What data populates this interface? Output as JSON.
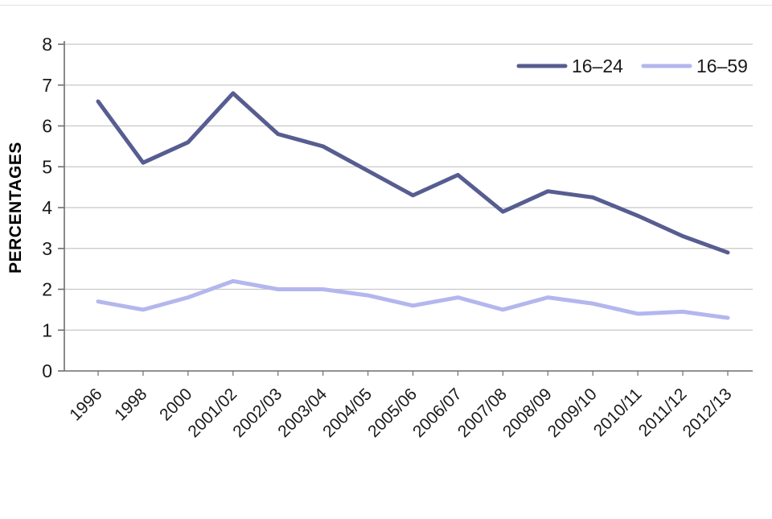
{
  "chart_data": {
    "type": "line",
    "title": "",
    "xlabel": "",
    "ylabel": "PERCENTAGES",
    "ylim": [
      0,
      8
    ],
    "yticks": [
      0,
      1,
      2,
      3,
      4,
      5,
      6,
      7,
      8
    ],
    "grid": true,
    "legend_position": "top-right",
    "categories": [
      "1996",
      "1998",
      "2000",
      "2001/02",
      "2002/03",
      "2003/04",
      "2004/05",
      "2005/06",
      "2006/07",
      "2007/08",
      "2008/09",
      "2009/10",
      "2010/11",
      "2011/12",
      "2012/13"
    ],
    "series": [
      {
        "name": "16–24",
        "color": "#575d90",
        "values": [
          6.6,
          5.1,
          5.6,
          6.8,
          5.8,
          5.5,
          4.9,
          4.3,
          4.8,
          3.9,
          4.4,
          4.25,
          3.8,
          3.3,
          2.9
        ]
      },
      {
        "name": "16–59",
        "color": "#b4b6ee",
        "values": [
          1.7,
          1.5,
          1.8,
          2.2,
          2.0,
          2.0,
          1.85,
          1.6,
          1.8,
          1.5,
          1.8,
          1.65,
          1.4,
          1.45,
          1.3
        ]
      }
    ],
    "colors": {
      "grid": "#c8c8c8",
      "axis": "#6e6e6e",
      "text": "#1a1a1a"
    }
  }
}
